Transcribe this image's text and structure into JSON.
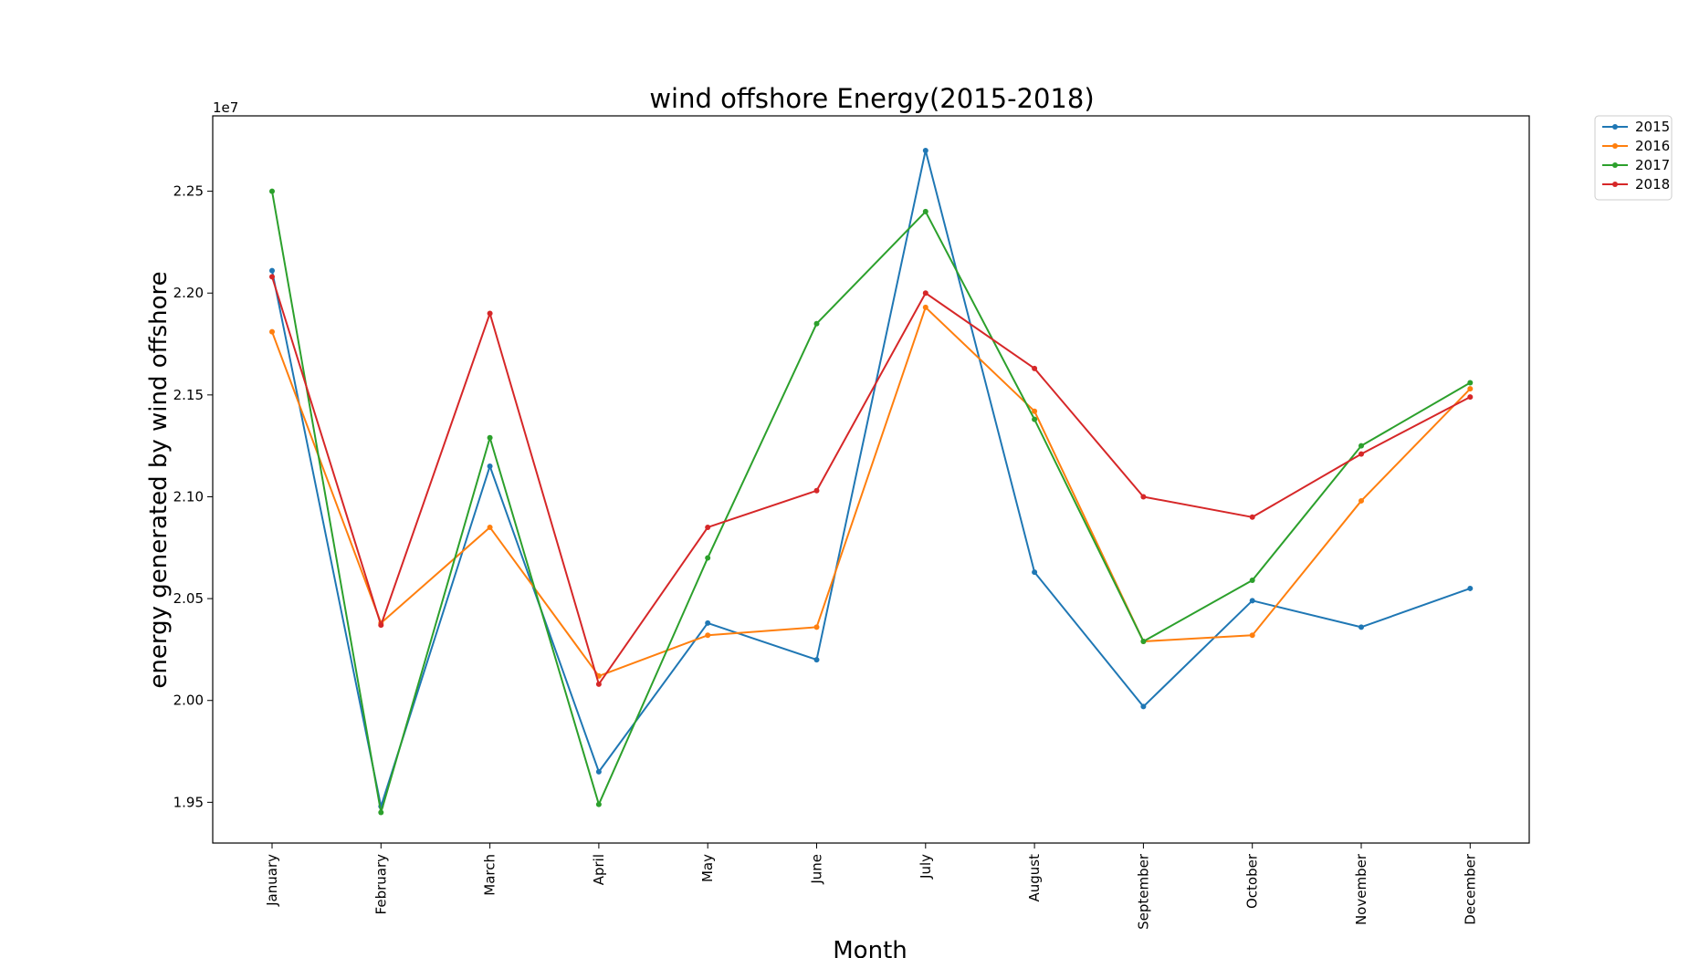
{
  "chart_data": {
    "type": "line",
    "title": "wind offshore Energy(2015-2018)",
    "xlabel": "Month",
    "ylabel": "energy generated by wind offshore",
    "offset_label": "1e7",
    "categories": [
      "January",
      "February",
      "March",
      "April",
      "May",
      "June",
      "July",
      "August",
      "September",
      "October",
      "November",
      "December"
    ],
    "ylim": [
      19.3,
      22.87
    ],
    "yticks": [
      19.5,
      20.0,
      20.5,
      21.0,
      21.5,
      22.0,
      22.5
    ],
    "ytick_labels": [
      "1.95",
      "2.00",
      "2.05",
      "2.10",
      "2.15",
      "2.20",
      "2.25"
    ],
    "grid": false,
    "legend_position": "outside-top-right",
    "series": [
      {
        "name": "2015",
        "color": "#1f77b4",
        "values": [
          22.11,
          19.48,
          21.15,
          19.65,
          20.38,
          20.2,
          22.7,
          20.63,
          19.97,
          20.49,
          20.36,
          20.55
        ]
      },
      {
        "name": "2016",
        "color": "#ff7f0e",
        "values": [
          21.81,
          20.38,
          20.85,
          20.12,
          20.32,
          20.36,
          21.93,
          21.42,
          20.29,
          20.32,
          20.98,
          21.53
        ]
      },
      {
        "name": "2017",
        "color": "#2ca02c",
        "values": [
          22.5,
          19.45,
          21.29,
          19.49,
          20.7,
          21.85,
          22.4,
          21.38,
          20.29,
          20.59,
          21.25,
          21.56
        ]
      },
      {
        "name": "2018",
        "color": "#d62728",
        "values": [
          22.08,
          20.37,
          21.9,
          20.08,
          20.85,
          21.03,
          22.0,
          21.63,
          21.0,
          20.9,
          21.21,
          21.49
        ]
      }
    ]
  }
}
